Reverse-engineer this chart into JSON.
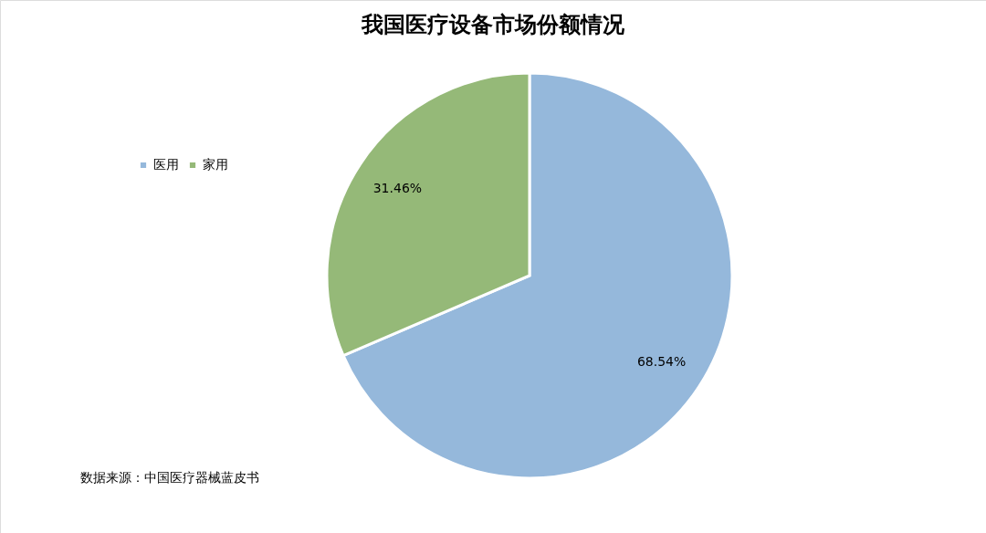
{
  "chart_data": {
    "type": "pie",
    "title": "我国医疗设备市场份额情况",
    "categories": [
      "医用",
      "家用"
    ],
    "values": [
      68.54,
      31.46
    ],
    "colors": [
      "#95b8db",
      "#95b978"
    ],
    "value_labels": [
      "68.54%",
      "31.46%"
    ],
    "legend": "left",
    "annotations": [
      "数据来源：中国医疗器械蓝皮书"
    ]
  }
}
